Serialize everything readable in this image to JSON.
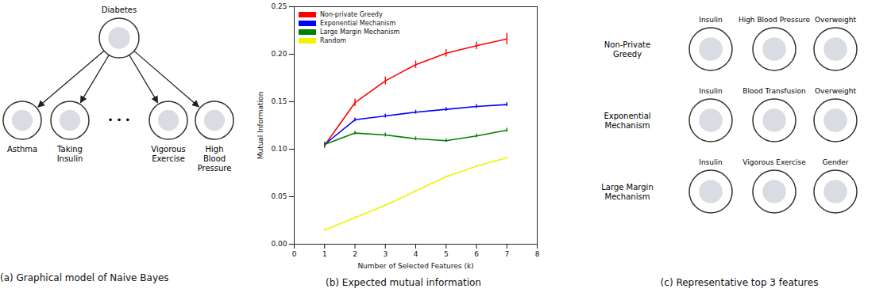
{
  "chart_data": {
    "type": "line",
    "caption": "(b) Expected mutual information",
    "x_label": "Number of Selected Features (k)",
    "y_label": "Mutual Information",
    "x": [
      1,
      2,
      3,
      4,
      5,
      6,
      7
    ],
    "xlim": [
      0,
      8
    ],
    "xticks": [
      0,
      1,
      2,
      3,
      4,
      5,
      6,
      7,
      8
    ],
    "ylim": [
      0,
      0.25
    ],
    "yticks": [
      {
        "value": 0,
        "label": "0.00"
      },
      {
        "value": 0.05,
        "label": "0.05"
      },
      {
        "value": 0.1,
        "label": "0.10"
      },
      {
        "value": 0.15,
        "label": "0.15"
      },
      {
        "value": 0.2,
        "label": "0.20"
      },
      {
        "value": 0.25,
        "label": "0.25"
      }
    ],
    "grid": false,
    "legend": "upper left",
    "series": [
      {
        "name": "Non-private Greedy",
        "color": "#ff0000",
        "values": [
          0.104,
          0.149,
          0.172,
          0.189,
          0.201,
          0.209,
          0.216
        ],
        "errors": [
          0.003,
          0.004,
          0.004,
          0.004,
          0.004,
          0.004,
          0.006
        ]
      },
      {
        "name": "Exponential Mechanism",
        "color": "#0000ff",
        "values": [
          0.105,
          0.131,
          0.135,
          0.139,
          0.142,
          0.145,
          0.147
        ],
        "errors": [
          0.002,
          0.002,
          0.002,
          0.002,
          0.002,
          0.002,
          0.002
        ]
      },
      {
        "name": "Large Margin Mechanism",
        "color": "#008000",
        "values": [
          0.105,
          0.117,
          0.115,
          0.111,
          0.109,
          0.114,
          0.12
        ],
        "errors": [
          0.002,
          0.002,
          0.002,
          0.002,
          0.002,
          0.002,
          0.002
        ]
      },
      {
        "name": "Random",
        "color": "#f2f200",
        "values": [
          0.015,
          0.028,
          0.041,
          0.056,
          0.071,
          0.082,
          0.091
        ],
        "errors": [
          0.001,
          0.001,
          0.001,
          0.001,
          0.001,
          0.001,
          0.001
        ]
      }
    ]
  },
  "diagram": {
    "caption": "(a) Graphical model of Naive Bayes",
    "root": "Diabetes",
    "children": [
      "Asthma",
      "Taking\nInsulin",
      "Vigorous\nExercise",
      "High\nBlood\nPressure"
    ],
    "ellipsis": "• • •"
  },
  "features": {
    "caption": "(c) Representative top 3 features",
    "rows": [
      {
        "method": "Non-Private\nGreedy",
        "features": [
          "Insulin",
          "High Blood Pressure",
          "Overweight"
        ]
      },
      {
        "method": "Exponential\nMechanism",
        "features": [
          "Insulin",
          "Blood Transfusion",
          "Overweight"
        ]
      },
      {
        "method": "Large Margin\nMechanism",
        "features": [
          "Insulin",
          "Vigorous Exercise",
          "Gender"
        ]
      }
    ]
  }
}
